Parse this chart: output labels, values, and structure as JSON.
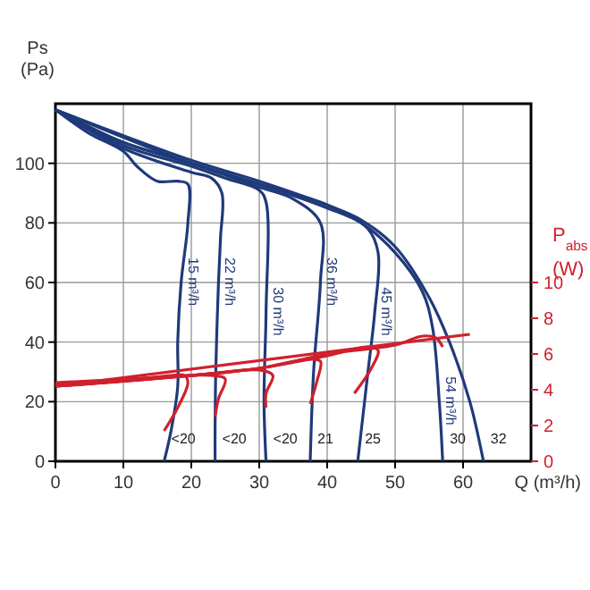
{
  "chart_data": {
    "type": "line",
    "xlabel": "Q (m³/h)",
    "ylabel": "Ps (Pa)",
    "y2label": "P$_{abs}$ (W)",
    "xlim": [
      0,
      70
    ],
    "xticks": [
      0,
      10,
      20,
      30,
      40,
      50,
      60
    ],
    "ylim": [
      0,
      120
    ],
    "yticks": [
      0,
      20,
      40,
      60,
      80,
      100
    ],
    "y2lim": [
      0,
      20
    ],
    "y2ticks": [
      0,
      2,
      4,
      6,
      8,
      10
    ],
    "grid": true,
    "marker": "none",
    "line_style": "solid",
    "series": [
      {
        "name": "15 m³/h",
        "color": "#1f3a7a",
        "x": [
          0,
          5,
          10,
          12,
          15,
          18,
          19.5,
          19.5,
          18.5,
          18,
          18,
          17,
          16
        ],
        "values": [
          118,
          110,
          104,
          99,
          94,
          94,
          93,
          80,
          60,
          40,
          25,
          10,
          0
        ]
      },
      {
        "name": "22 m³/h",
        "color": "#1f3a7a",
        "x": [
          0,
          10,
          20,
          23,
          24.5,
          24.3,
          24,
          23.6,
          23.5,
          23.5
        ],
        "values": [
          118,
          105,
          97,
          95,
          90,
          75,
          60,
          30,
          10,
          0
        ]
      },
      {
        "name": "30 m³/h",
        "color": "#1f3a7a",
        "x": [
          0,
          10,
          20,
          25,
          30,
          31,
          31,
          30.7,
          31
        ],
        "values": [
          118,
          106,
          99,
          95,
          91,
          87,
          50,
          20,
          0
        ]
      },
      {
        "name": "36 m³/h",
        "color": "#1f3a7a",
        "x": [
          0,
          10,
          20,
          30,
          35,
          39,
          39,
          38,
          37.5
        ],
        "values": [
          118,
          107,
          100,
          92,
          88,
          80,
          60,
          30,
          0
        ]
      },
      {
        "name": "45 m³/h",
        "color": "#1f3a7a",
        "x": [
          0,
          10,
          20,
          30,
          40,
          46,
          47.5,
          47,
          46,
          44.5
        ],
        "values": [
          118,
          107,
          100,
          93,
          86,
          78,
          70,
          50,
          30,
          0
        ]
      },
      {
        "name": "54 m³/h",
        "color": "#1f3a7a",
        "x": [
          0,
          20,
          30,
          40,
          45,
          50,
          54,
          55.5,
          56.5,
          57
        ],
        "values": [
          118,
          100,
          93,
          85,
          80,
          70,
          57,
          45,
          20,
          0
        ]
      },
      {
        "color": "#1f3a7a",
        "x": [
          0,
          20,
          30,
          40,
          45,
          50,
          55,
          58,
          61,
          63
        ],
        "values": [
          118,
          101,
          94,
          86,
          81,
          72,
          55,
          40,
          20,
          0
        ]
      },
      {
        "color": "#d0202e",
        "axis": "y2",
        "x": [
          0,
          10,
          17,
          19,
          19.5,
          18,
          16
        ],
        "values": [
          4.2,
          4.5,
          4.8,
          4.8,
          4.4,
          3,
          1.7
        ]
      },
      {
        "color": "#d0202e",
        "axis": "y2",
        "x": [
          0,
          15,
          23,
          25,
          24,
          23.5
        ],
        "values": [
          4.3,
          4.7,
          4.8,
          4.6,
          3.5,
          2.5
        ]
      },
      {
        "color": "#d0202e",
        "axis": "y2",
        "x": [
          0,
          20,
          30,
          32,
          31,
          31
        ],
        "values": [
          4.4,
          4.8,
          5.1,
          4.8,
          3.8,
          3
        ]
      },
      {
        "color": "#d0202e",
        "axis": "y2",
        "x": [
          0,
          20,
          30,
          37,
          39,
          38.5,
          37.5
        ],
        "values": [
          4.2,
          4.8,
          5.2,
          5.7,
          5.6,
          4.5,
          3.2
        ]
      },
      {
        "color": "#d0202e",
        "axis": "y2",
        "x": [
          0,
          20,
          30,
          40,
          46,
          47.5,
          46.5,
          44
        ],
        "values": [
          4.2,
          4.8,
          5.2,
          5.9,
          6.4,
          6.2,
          5.2,
          3.8
        ]
      },
      {
        "color": "#d0202e",
        "axis": "y2",
        "x": [
          0,
          30,
          40,
          50,
          54,
          56,
          57
        ],
        "values": [
          4.2,
          5.2,
          6,
          6.5,
          7,
          6.9,
          6.4
        ]
      },
      {
        "color": "#d0202e",
        "axis": "y2",
        "x": [
          0,
          61
        ],
        "values": [
          4.2,
          7.1
        ]
      }
    ],
    "annotations": [
      "<20",
      "<20",
      "<20",
      "21",
      "25",
      "30",
      "32"
    ]
  }
}
